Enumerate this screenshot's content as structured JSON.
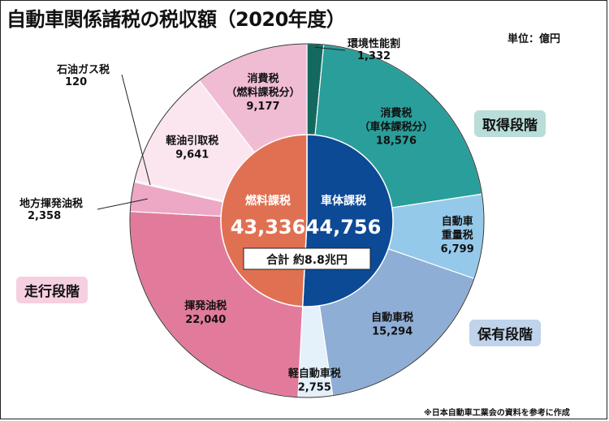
{
  "title": "自動車関係諸税の税収額（2020年度）",
  "unit": "単位：億円",
  "source_note": "※日本自動車工業会の資料を参考に作成",
  "stages": {
    "acquisition": {
      "label": "取得段階",
      "color": "#2f8a83",
      "bg": "#b9ddd8"
    },
    "ownership": {
      "label": "保有段階",
      "color": "#5a82b8",
      "bg": "#bfd3ea"
    },
    "driving": {
      "label": "走行段階",
      "color": "#d45c87",
      "bg": "#f6cfe0"
    }
  },
  "chart_data": {
    "type": "pie",
    "title": "自動車関係諸税の税収額（2020年度）",
    "unit": "億円",
    "outer": [
      {
        "name": "環境性能割",
        "value": 1332,
        "color": "#14695f",
        "label_line1": "環境性能割",
        "label_value": "1,332",
        "label_pos": "outside"
      },
      {
        "name": "消費税（車体課税分）",
        "value": 18576,
        "color": "#2a9e9a",
        "label_line1": "消費税",
        "label_line2": "（車体課税分）",
        "label_value": "18,576"
      },
      {
        "name": "自動車重量税",
        "value": 6799,
        "color": "#95c9ea",
        "label_line1": "自動車",
        "label_line2": "重量税",
        "label_value": "6,799"
      },
      {
        "name": "自動車税",
        "value": 15294,
        "color": "#8faed6",
        "label_line1": "自動車税",
        "label_value": "15,294"
      },
      {
        "name": "軽自動車税",
        "value": 2755,
        "color": "#e4f0fa",
        "label_line1": "軽自動車税",
        "label_value": "2,755"
      },
      {
        "name": "揮発油税",
        "value": 22040,
        "color": "#e27b9b",
        "label_line1": "揮発油税",
        "label_value": "22,040"
      },
      {
        "name": "地方揮発油税",
        "value": 2358,
        "color": "#eca8c4",
        "label_line1": "地方揮発油税",
        "label_value": "2,358",
        "label_pos": "outside"
      },
      {
        "name": "石油ガス税",
        "value": 120,
        "color": "#f7dbe8",
        "label_line1": "石油ガス税",
        "label_value": "120",
        "label_pos": "outside"
      },
      {
        "name": "軽油引取税",
        "value": 9641,
        "color": "#fbe6f0",
        "label_line1": "軽油引取税",
        "label_value": "9,641"
      },
      {
        "name": "消費税（燃料課税分）",
        "value": 9177,
        "color": "#f0bcd4",
        "label_line1": "消費税",
        "label_line2": "（燃料課税分）",
        "label_value": "9,177"
      }
    ],
    "inner": [
      {
        "name": "車体課税",
        "value": 44756,
        "value_label": "44,756",
        "color": "#0c4a96"
      },
      {
        "name": "燃料課税",
        "value": 43336,
        "value_label": "43,336",
        "color": "#e07052"
      }
    ],
    "total_label": "合計 約8.8兆円"
  }
}
